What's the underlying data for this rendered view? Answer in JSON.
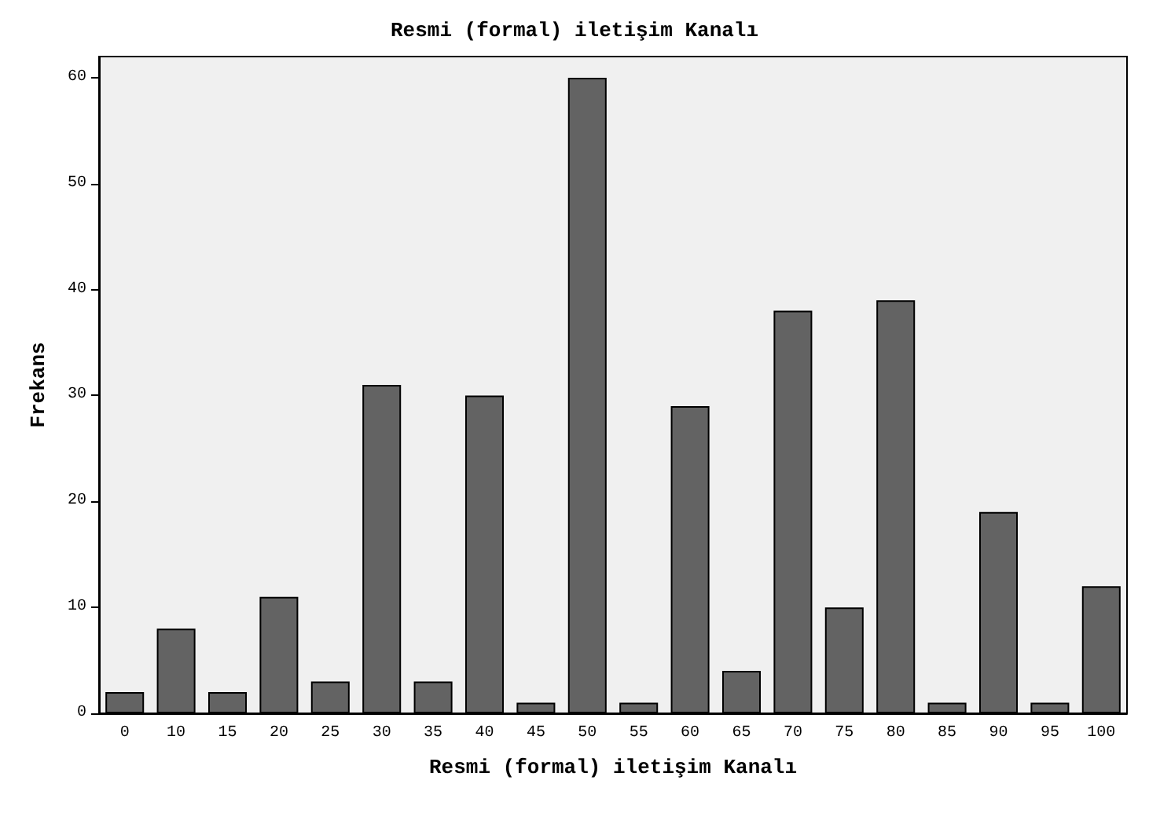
{
  "chart_data": {
    "type": "bar",
    "title": "Resmi (formal) iletişim Kanalı",
    "xlabel": "Resmi (formal) iletişim Kanalı",
    "ylabel": "Frekans",
    "categories": [
      "0",
      "10",
      "15",
      "20",
      "25",
      "30",
      "35",
      "40",
      "45",
      "50",
      "55",
      "60",
      "65",
      "70",
      "75",
      "80",
      "85",
      "90",
      "95",
      "100"
    ],
    "values": [
      2,
      8,
      2,
      11,
      3,
      31,
      3,
      30,
      1,
      60,
      1,
      29,
      4,
      38,
      10,
      39,
      1,
      19,
      1,
      12
    ],
    "color": "#636363",
    "ylim": [
      0,
      62
    ],
    "yticks": [
      0,
      10,
      20,
      30,
      40,
      50,
      60
    ],
    "grid": false
  }
}
